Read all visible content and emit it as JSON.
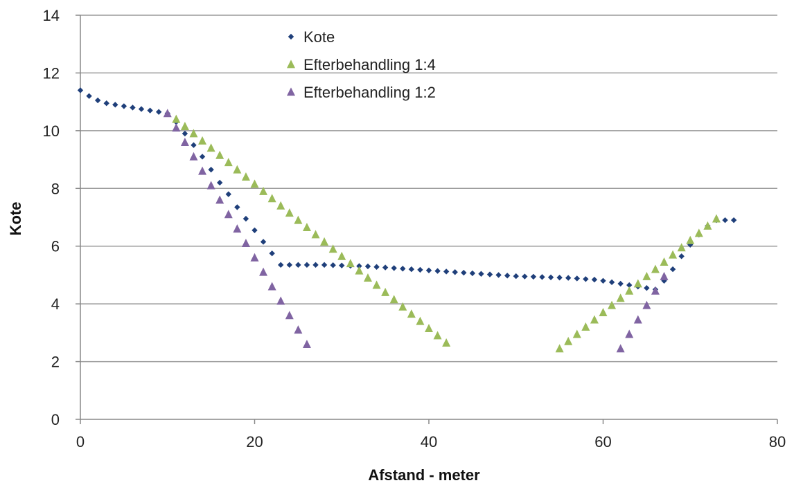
{
  "chart_data": {
    "type": "scatter",
    "title": "",
    "xlabel": "Afstand - meter",
    "ylabel": "Kote",
    "xlim": [
      0,
      80
    ],
    "ylim": [
      0,
      14
    ],
    "xticks": [
      0,
      20,
      40,
      60,
      80
    ],
    "yticks": [
      0,
      2,
      4,
      6,
      8,
      10,
      12,
      14
    ],
    "grid": "horizontal",
    "legend_position": "top-center",
    "series": [
      {
        "name": "Kote",
        "marker": "diamond",
        "color": "#1F3F7A",
        "x": [
          0,
          1,
          2,
          3,
          4,
          5,
          6,
          7,
          8,
          9,
          10,
          11,
          12,
          13,
          14,
          15,
          16,
          17,
          18,
          19,
          20,
          21,
          22,
          23,
          24,
          25,
          26,
          27,
          28,
          29,
          30,
          31,
          32,
          33,
          34,
          35,
          36,
          37,
          38,
          39,
          40,
          41,
          42,
          43,
          44,
          45,
          46,
          47,
          48,
          49,
          50,
          51,
          52,
          53,
          54,
          55,
          56,
          57,
          58,
          59,
          60,
          61,
          62,
          63,
          64,
          65,
          66,
          67,
          68,
          69,
          70,
          71,
          72,
          73,
          74,
          75
        ],
        "y": [
          11.4,
          11.2,
          11.05,
          10.95,
          10.9,
          10.85,
          10.8,
          10.75,
          10.7,
          10.65,
          10.6,
          10.3,
          9.9,
          9.5,
          9.1,
          8.65,
          8.2,
          7.8,
          7.35,
          6.95,
          6.55,
          6.15,
          5.75,
          5.35,
          5.35,
          5.35,
          5.35,
          5.35,
          5.35,
          5.34,
          5.33,
          5.32,
          5.31,
          5.3,
          5.28,
          5.26,
          5.24,
          5.22,
          5.2,
          5.18,
          5.16,
          5.14,
          5.12,
          5.1,
          5.08,
          5.06,
          5.04,
          5.02,
          5.0,
          4.98,
          4.96,
          4.95,
          4.94,
          4.93,
          4.92,
          4.91,
          4.9,
          4.88,
          4.86,
          4.84,
          4.8,
          4.75,
          4.7,
          4.65,
          4.6,
          4.55,
          4.5,
          4.8,
          5.2,
          5.65,
          6.05,
          6.4,
          6.7,
          6.9,
          6.9,
          6.9
        ]
      },
      {
        "name": "Efterbehandling 1:4",
        "marker": "triangle",
        "color": "#9BBB59",
        "x": [
          11,
          12,
          13,
          14,
          15,
          16,
          17,
          18,
          19,
          20,
          21,
          22,
          23,
          24,
          25,
          26,
          27,
          28,
          29,
          30,
          31,
          32,
          33,
          34,
          35,
          36,
          37,
          38,
          39,
          40,
          41,
          42,
          55,
          56,
          57,
          58,
          59,
          60,
          61,
          62,
          63,
          64,
          65,
          66,
          67,
          68,
          69,
          70,
          71,
          72,
          73
        ],
        "y": [
          10.4,
          10.15,
          9.9,
          9.65,
          9.4,
          9.15,
          8.9,
          8.65,
          8.4,
          8.15,
          7.9,
          7.65,
          7.4,
          7.15,
          6.9,
          6.65,
          6.4,
          6.15,
          5.9,
          5.65,
          5.4,
          5.15,
          4.9,
          4.65,
          4.4,
          4.15,
          3.9,
          3.65,
          3.4,
          3.15,
          2.9,
          2.65,
          2.45,
          2.7,
          2.95,
          3.2,
          3.45,
          3.7,
          3.95,
          4.2,
          4.45,
          4.7,
          4.95,
          5.2,
          5.45,
          5.7,
          5.95,
          6.2,
          6.45,
          6.7,
          6.95
        ]
      },
      {
        "name": "Efterbehandling 1:2",
        "marker": "triangle",
        "color": "#8064A2",
        "x": [
          10,
          11,
          12,
          13,
          14,
          15,
          16,
          17,
          18,
          19,
          20,
          21,
          22,
          23,
          24,
          25,
          26,
          62,
          63,
          64,
          65,
          66,
          67
        ],
        "y": [
          10.6,
          10.1,
          9.6,
          9.1,
          8.6,
          8.1,
          7.6,
          7.1,
          6.6,
          6.1,
          5.6,
          5.1,
          4.6,
          4.1,
          3.6,
          3.1,
          2.6,
          2.45,
          2.95,
          3.45,
          3.95,
          4.45,
          4.95
        ]
      }
    ]
  },
  "colors": {
    "grid": "#9A9A9A",
    "axis": "#888888"
  }
}
